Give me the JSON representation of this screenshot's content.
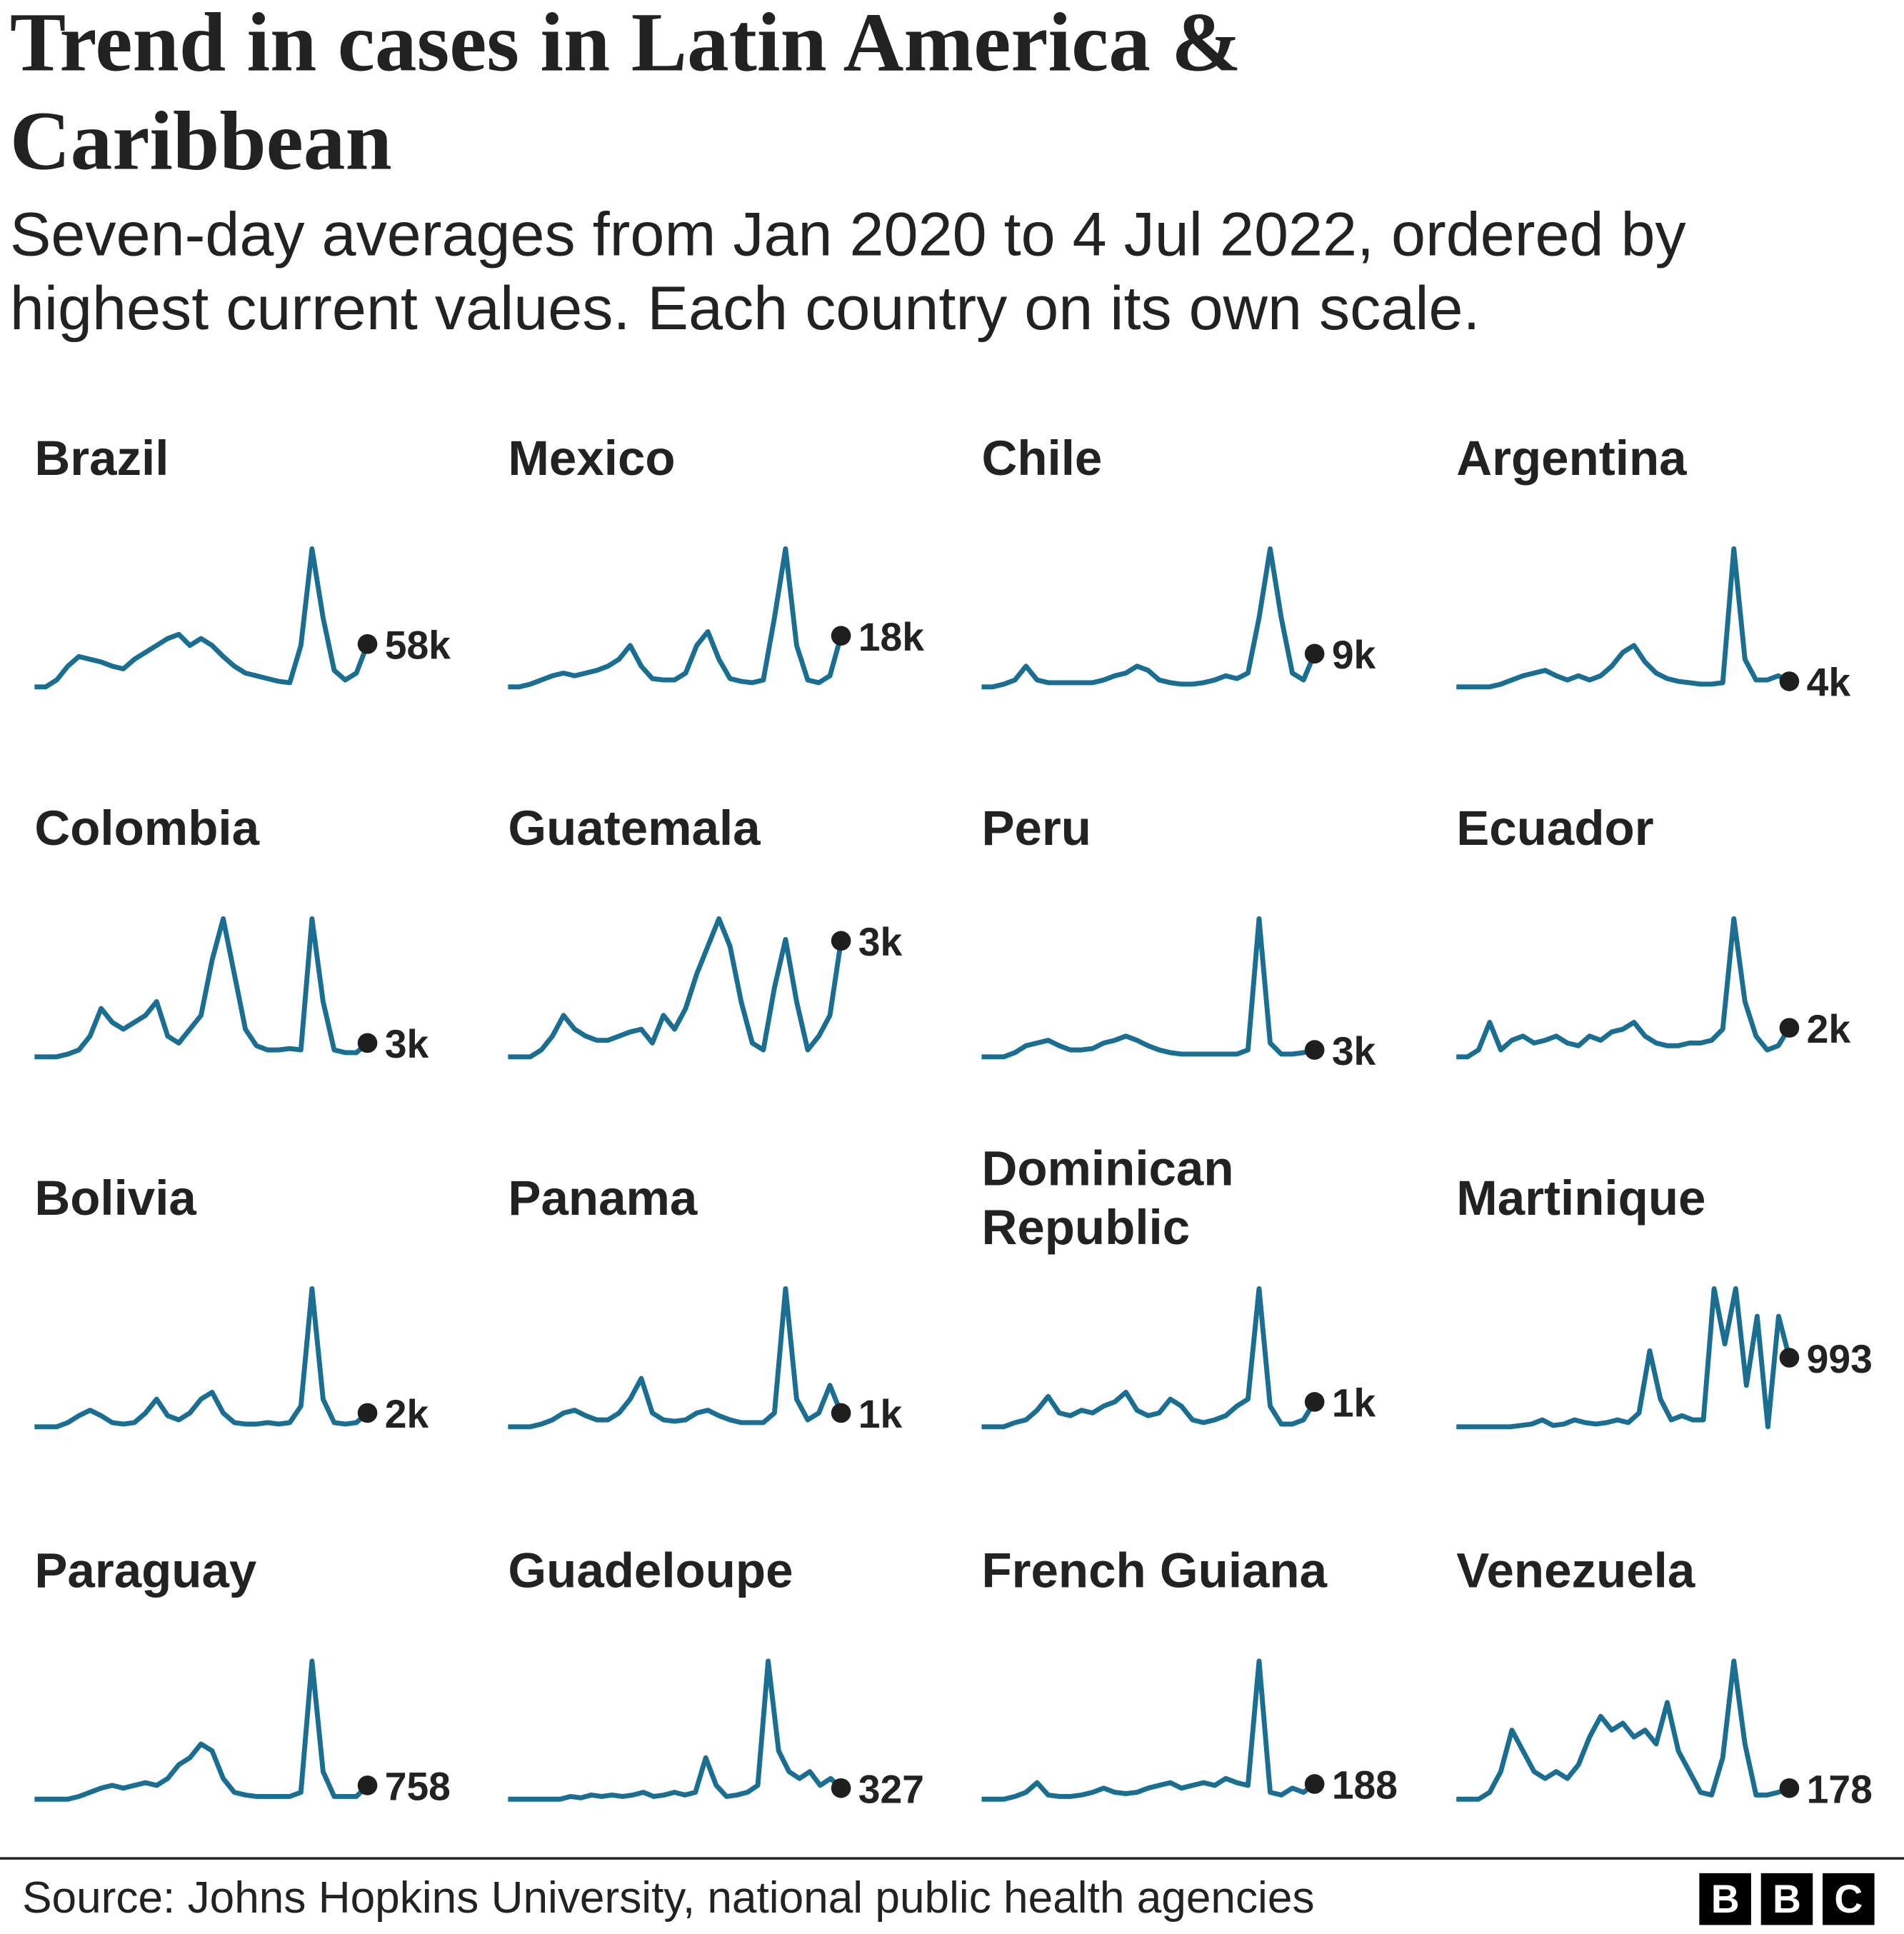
{
  "title": "Trend in cases in Latin America & Caribbean",
  "subtitle": "Seven-day averages from Jan 2020 to 4 Jul 2022, ordered by highest current values. Each country on its own scale.",
  "source": "Source: Johns Hopkins University, national public health agencies",
  "logo": [
    "B",
    "B",
    "C"
  ],
  "colors": {
    "line": "#1a6e91",
    "dot": "#1f1f1f",
    "text": "#222222"
  },
  "chart_data": {
    "type": "line",
    "layout": "small-multiples",
    "x_range": [
      "Jan 2020",
      "4 Jul 2022"
    ],
    "y_scale": "each country on its own scale (values relative to the country's own peak)",
    "grid": false,
    "panels": [
      {
        "country": "Brazil",
        "current_label": "58k",
        "values": [
          0,
          0,
          0.05,
          0.15,
          0.22,
          0.2,
          0.18,
          0.15,
          0.13,
          0.2,
          0.25,
          0.3,
          0.35,
          0.38,
          0.3,
          0.35,
          0.3,
          0.22,
          0.15,
          0.1,
          0.08,
          0.06,
          0.04,
          0.03,
          0.3,
          1.0,
          0.5,
          0.12,
          0.05,
          0.1,
          0.31
        ]
      },
      {
        "country": "Mexico",
        "current_label": "18k",
        "values": [
          0,
          0,
          0.02,
          0.05,
          0.08,
          0.1,
          0.08,
          0.1,
          0.12,
          0.15,
          0.2,
          0.3,
          0.15,
          0.06,
          0.05,
          0.05,
          0.1,
          0.3,
          0.4,
          0.2,
          0.06,
          0.04,
          0.03,
          0.05,
          0.5,
          1.0,
          0.3,
          0.05,
          0.03,
          0.08,
          0.37
        ]
      },
      {
        "country": "Chile",
        "current_label": "9k",
        "values": [
          0,
          0,
          0.02,
          0.05,
          0.15,
          0.05,
          0.03,
          0.03,
          0.03,
          0.03,
          0.03,
          0.05,
          0.08,
          0.1,
          0.15,
          0.12,
          0.05,
          0.03,
          0.02,
          0.02,
          0.03,
          0.05,
          0.08,
          0.06,
          0.1,
          0.5,
          1.0,
          0.5,
          0.1,
          0.05,
          0.24
        ]
      },
      {
        "country": "Argentina",
        "current_label": "4k",
        "values": [
          0,
          0,
          0,
          0,
          0.02,
          0.05,
          0.08,
          0.1,
          0.12,
          0.08,
          0.05,
          0.08,
          0.05,
          0.08,
          0.15,
          0.25,
          0.3,
          0.18,
          0.1,
          0.06,
          0.04,
          0.03,
          0.02,
          0.02,
          0.03,
          1.0,
          0.2,
          0.05,
          0.05,
          0.08,
          0.04
        ]
      },
      {
        "country": "Colombia",
        "current_label": "3k",
        "values": [
          0,
          0,
          0,
          0.02,
          0.05,
          0.15,
          0.35,
          0.25,
          0.2,
          0.25,
          0.3,
          0.4,
          0.15,
          0.1,
          0.2,
          0.3,
          0.7,
          1.0,
          0.6,
          0.2,
          0.08,
          0.05,
          0.05,
          0.06,
          0.05,
          1.0,
          0.4,
          0.05,
          0.03,
          0.03,
          0.1
        ]
      },
      {
        "country": "Guatemala",
        "current_label": "3k",
        "values": [
          0,
          0,
          0,
          0.05,
          0.15,
          0.3,
          0.2,
          0.15,
          0.12,
          0.12,
          0.15,
          0.18,
          0.2,
          0.1,
          0.3,
          0.2,
          0.35,
          0.6,
          0.8,
          1.0,
          0.8,
          0.4,
          0.1,
          0.05,
          0.5,
          0.85,
          0.4,
          0.05,
          0.15,
          0.3,
          0.84
        ]
      },
      {
        "country": "Peru",
        "current_label": "3k",
        "values": [
          0,
          0,
          0,
          0.03,
          0.08,
          0.1,
          0.12,
          0.08,
          0.05,
          0.05,
          0.06,
          0.1,
          0.12,
          0.15,
          0.12,
          0.08,
          0.05,
          0.03,
          0.02,
          0.02,
          0.02,
          0.02,
          0.02,
          0.02,
          0.05,
          1.0,
          0.1,
          0.02,
          0.02,
          0.03,
          0.05
        ]
      },
      {
        "country": "Ecuador",
        "current_label": "2k",
        "values": [
          0,
          0,
          0.05,
          0.25,
          0.05,
          0.12,
          0.15,
          0.1,
          0.12,
          0.15,
          0.1,
          0.08,
          0.15,
          0.12,
          0.18,
          0.2,
          0.25,
          0.15,
          0.1,
          0.08,
          0.08,
          0.1,
          0.1,
          0.12,
          0.2,
          1.0,
          0.4,
          0.15,
          0.05,
          0.08,
          0.21
        ]
      },
      {
        "country": "Bolivia",
        "current_label": "2k",
        "values": [
          0,
          0,
          0,
          0.03,
          0.08,
          0.12,
          0.08,
          0.03,
          0.02,
          0.03,
          0.1,
          0.2,
          0.08,
          0.05,
          0.1,
          0.2,
          0.25,
          0.1,
          0.03,
          0.02,
          0.02,
          0.03,
          0.02,
          0.03,
          0.15,
          1.0,
          0.2,
          0.03,
          0.02,
          0.03,
          0.1
        ]
      },
      {
        "country": "Panama",
        "current_label": "1k",
        "values": [
          0,
          0,
          0,
          0.02,
          0.05,
          0.1,
          0.12,
          0.08,
          0.05,
          0.05,
          0.1,
          0.2,
          0.35,
          0.1,
          0.05,
          0.04,
          0.05,
          0.1,
          0.12,
          0.08,
          0.05,
          0.03,
          0.03,
          0.03,
          0.1,
          1.0,
          0.2,
          0.05,
          0.1,
          0.3,
          0.1
        ]
      },
      {
        "country": "Dominican Republic",
        "current_label": "1k",
        "values": [
          0,
          0,
          0,
          0.03,
          0.05,
          0.12,
          0.22,
          0.1,
          0.08,
          0.12,
          0.1,
          0.15,
          0.18,
          0.25,
          0.12,
          0.08,
          0.1,
          0.2,
          0.15,
          0.05,
          0.03,
          0.05,
          0.08,
          0.15,
          0.2,
          1.0,
          0.15,
          0.02,
          0.02,
          0.05,
          0.18
        ]
      },
      {
        "country": "Martinique",
        "current_label": "993",
        "values": [
          0,
          0,
          0,
          0,
          0,
          0,
          0.01,
          0.02,
          0.05,
          0.01,
          0.02,
          0.05,
          0.03,
          0.02,
          0.03,
          0.05,
          0.03,
          0.1,
          0.55,
          0.2,
          0.05,
          0.08,
          0.05,
          0.05,
          1.0,
          0.6,
          1.0,
          0.3,
          0.8,
          0,
          0.8,
          0.5
        ]
      },
      {
        "country": "Paraguay",
        "current_label": "758",
        "values": [
          0,
          0,
          0,
          0,
          0.02,
          0.05,
          0.08,
          0.1,
          0.08,
          0.1,
          0.12,
          0.1,
          0.15,
          0.25,
          0.3,
          0.4,
          0.35,
          0.15,
          0.05,
          0.03,
          0.02,
          0.02,
          0.02,
          0.02,
          0.05,
          1.0,
          0.2,
          0.02,
          0.02,
          0.02,
          0.1
        ]
      },
      {
        "country": "Guadeloupe",
        "current_label": "327",
        "values": [
          0,
          0,
          0,
          0,
          0,
          0,
          0.02,
          0.01,
          0.03,
          0.02,
          0.03,
          0.02,
          0.03,
          0.05,
          0.02,
          0.03,
          0.05,
          0.03,
          0.05,
          0.3,
          0.1,
          0.02,
          0.03,
          0.05,
          0.1,
          1.0,
          0.35,
          0.2,
          0.15,
          0.2,
          0.1,
          0.15,
          0.08
        ]
      },
      {
        "country": "French Guiana",
        "current_label": "188",
        "values": [
          0,
          0,
          0,
          0.02,
          0.05,
          0.12,
          0.03,
          0.02,
          0.02,
          0.03,
          0.05,
          0.08,
          0.05,
          0.04,
          0.05,
          0.08,
          0.1,
          0.12,
          0.08,
          0.1,
          0.12,
          0.1,
          0.15,
          0.12,
          0.1,
          1.0,
          0.05,
          0.03,
          0.08,
          0.05,
          0.11
        ]
      },
      {
        "country": "Venezuela",
        "current_label": "178",
        "values": [
          0,
          0,
          0,
          0.05,
          0.2,
          0.5,
          0.35,
          0.2,
          0.15,
          0.2,
          0.15,
          0.25,
          0.45,
          0.6,
          0.5,
          0.55,
          0.45,
          0.5,
          0.4,
          0.7,
          0.35,
          0.2,
          0.05,
          0.03,
          0.3,
          1.0,
          0.4,
          0.03,
          0.03,
          0.05,
          0.08
        ]
      }
    ]
  }
}
